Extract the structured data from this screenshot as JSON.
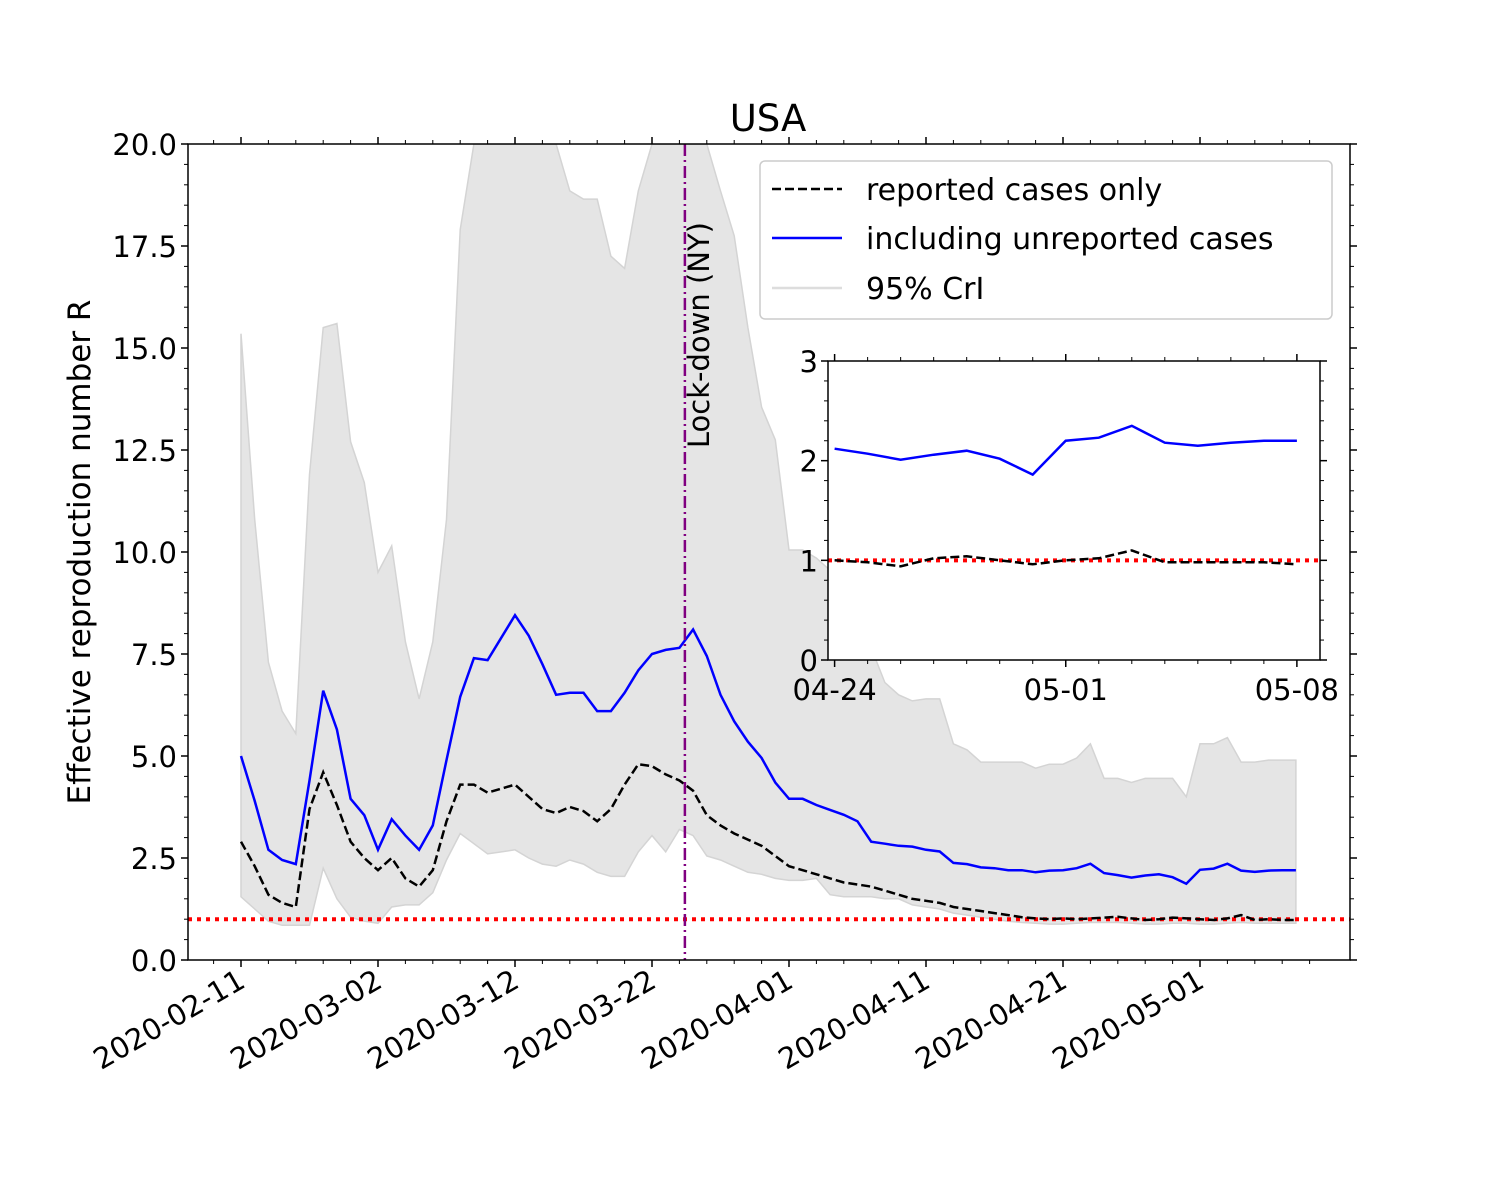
{
  "chart_data": {
    "type": "line",
    "title": "USA",
    "xlabel": "",
    "ylabel": "Effective reproduction number R",
    "ylim": [
      0,
      20
    ],
    "y_ticks": [
      "0.0",
      "2.5",
      "5.0",
      "7.5",
      "10.0",
      "12.5",
      "15.0",
      "17.5",
      "20.0"
    ],
    "x_tick_labels": [
      "2020-02-11",
      "2020-03-02",
      "2020-03-12",
      "2020-03-22",
      "2020-04-01",
      "2020-04-11",
      "2020-04-21",
      "2020-05-01"
    ],
    "x_start_date": "2020-02-11",
    "x_days": [
      0,
      1,
      2,
      3,
      4,
      5,
      6,
      7,
      8,
      9,
      10,
      11,
      12,
      13,
      14,
      15,
      16,
      17,
      18,
      19,
      20,
      21,
      22,
      23,
      24,
      25,
      26,
      27,
      28,
      29,
      30,
      31,
      32,
      33,
      34,
      35,
      36,
      37,
      38,
      39,
      40,
      41,
      42,
      43,
      44,
      45,
      46,
      47,
      48,
      49,
      50,
      51,
      52,
      53,
      54,
      55,
      56,
      57,
      58,
      59,
      60,
      61,
      62,
      63,
      64,
      65,
      66,
      67,
      68,
      69,
      70,
      71,
      72,
      73,
      74,
      75,
      76,
      77
    ],
    "series": [
      {
        "name": "reported cases only",
        "color": "#000000",
        "style": "dashed",
        "values": [
          2.9,
          2.3,
          1.6,
          1.4,
          1.3,
          3.7,
          4.6,
          3.8,
          2.9,
          2.5,
          2.2,
          2.5,
          2.0,
          1.8,
          2.2,
          3.4,
          4.3,
          4.3,
          4.1,
          4.2,
          4.3,
          4.0,
          3.7,
          3.6,
          3.75,
          3.65,
          3.4,
          3.7,
          4.3,
          4.8,
          4.75,
          4.55,
          4.4,
          4.15,
          3.55,
          3.3,
          3.1,
          2.95,
          2.8,
          2.55,
          2.3,
          2.2,
          2.1,
          2.0,
          1.9,
          1.85,
          1.8,
          1.7,
          1.6,
          1.5,
          1.45,
          1.4,
          1.3,
          1.25,
          1.2,
          1.15,
          1.1,
          1.05,
          1.02,
          1.0,
          1.02,
          1.0,
          1.02,
          1.04,
          1.06,
          1.02,
          0.98,
          1.0,
          1.04,
          1.02,
          1.0,
          0.98,
          1.02,
          1.1,
          0.98,
          1.0,
          0.98,
          0.98
        ]
      },
      {
        "name": "including unreported cases",
        "color": "#0000ff",
        "style": "solid",
        "values": [
          5.0,
          3.9,
          2.7,
          2.45,
          2.35,
          4.4,
          6.6,
          5.65,
          3.95,
          3.55,
          2.7,
          3.45,
          3.05,
          2.7,
          3.3,
          4.9,
          6.45,
          7.4,
          7.35,
          7.9,
          8.45,
          7.95,
          7.25,
          6.5,
          6.55,
          6.55,
          6.1,
          6.1,
          6.55,
          7.1,
          7.5,
          7.6,
          7.65,
          8.1,
          7.45,
          6.5,
          5.85,
          5.35,
          4.95,
          4.35,
          3.95,
          3.95,
          3.8,
          3.68,
          3.56,
          3.4,
          2.9,
          2.85,
          2.8,
          2.78,
          2.7,
          2.66,
          2.38,
          2.35,
          2.27,
          2.25,
          2.2,
          2.2,
          2.15,
          2.19,
          2.2,
          2.25,
          2.36,
          2.13,
          2.08,
          2.02,
          2.07,
          2.1,
          2.03,
          1.87,
          2.21,
          2.24,
          2.36,
          2.19,
          2.16,
          2.19,
          2.2,
          2.2
        ]
      },
      {
        "name": "95% CrI",
        "color": "#dddddd",
        "style": "band",
        "lower": [
          1.55,
          1.25,
          0.95,
          0.85,
          0.85,
          0.85,
          2.25,
          1.5,
          1.05,
          0.95,
          0.9,
          1.3,
          1.35,
          1.35,
          1.65,
          2.45,
          3.1,
          2.85,
          2.6,
          2.65,
          2.7,
          2.5,
          2.35,
          2.3,
          2.45,
          2.35,
          2.15,
          2.05,
          2.05,
          2.65,
          3.05,
          2.65,
          3.2,
          3.05,
          2.55,
          2.45,
          2.3,
          2.15,
          2.1,
          2.0,
          1.95,
          1.95,
          2.0,
          1.6,
          1.55,
          1.55,
          1.55,
          1.5,
          1.5,
          1.35,
          1.3,
          1.25,
          1.15,
          1.1,
          1.05,
          1.0,
          0.95,
          0.92,
          0.9,
          0.88,
          0.88,
          0.9,
          0.92,
          0.92,
          0.92,
          0.9,
          0.88,
          0.88,
          0.9,
          0.9,
          0.88,
          0.88,
          0.9,
          0.92,
          0.9,
          0.9,
          0.9,
          0.9
        ],
        "upper": [
          15.35,
          10.8,
          7.3,
          6.1,
          5.55,
          11.9,
          15.5,
          15.6,
          12.7,
          11.7,
          9.5,
          10.15,
          7.8,
          6.4,
          7.8,
          10.8,
          17.9,
          20.0,
          20.0,
          20.0,
          20.0,
          20.0,
          20.0,
          20.0,
          18.85,
          18.65,
          18.65,
          17.25,
          16.95,
          18.85,
          20.0,
          20.0,
          20.0,
          20.0,
          20.0,
          18.85,
          17.75,
          15.5,
          13.55,
          12.75,
          10.05,
          10.05,
          9.85,
          9.55,
          8.9,
          8.7,
          7.65,
          6.8,
          6.5,
          6.35,
          6.4,
          6.4,
          5.3,
          5.15,
          4.85,
          4.85,
          4.85,
          4.85,
          4.7,
          4.8,
          4.8,
          4.95,
          5.3,
          4.45,
          4.45,
          4.35,
          4.45,
          4.45,
          4.45,
          4.0,
          5.3,
          5.3,
          5.45,
          4.85,
          4.85,
          4.9,
          4.9,
          4.9
        ]
      }
    ],
    "reference_line": {
      "value": 1.0,
      "color": "#ff0000",
      "style": "dotted"
    },
    "event_line": {
      "day": 32.4,
      "label": "Lock-down (NY)",
      "color": "#800080",
      "style": "dashdot"
    },
    "legend": {
      "placement": "top-right",
      "entries": [
        "reported cases only",
        "including unreported cases",
        "95% CrI"
      ]
    },
    "inset": {
      "type": "line",
      "ylim": [
        0,
        3
      ],
      "y_ticks": [
        "0",
        "1",
        "2",
        "3"
      ],
      "x_tick_labels": [
        "04-24",
        "05-01",
        "05-08"
      ],
      "x_days": [
        0,
        1,
        2,
        3,
        4,
        5,
        6,
        7,
        8,
        9,
        10,
        11,
        12,
        13,
        14
      ],
      "xlim": [
        -0.2,
        14.7
      ],
      "x_tick_days": [
        0,
        7,
        14
      ],
      "reported": [
        1.0,
        0.98,
        0.94,
        1.02,
        1.04,
        1.0,
        0.96,
        1.0,
        1.02,
        1.1,
        0.98,
        0.98,
        0.98,
        0.98,
        0.96
      ],
      "unreported": [
        2.12,
        2.07,
        2.01,
        2.06,
        2.1,
        2.02,
        1.86,
        2.2,
        2.23,
        2.35,
        2.18,
        2.15,
        2.18,
        2.2,
        2.2
      ],
      "reference_value": 1.0
    }
  }
}
